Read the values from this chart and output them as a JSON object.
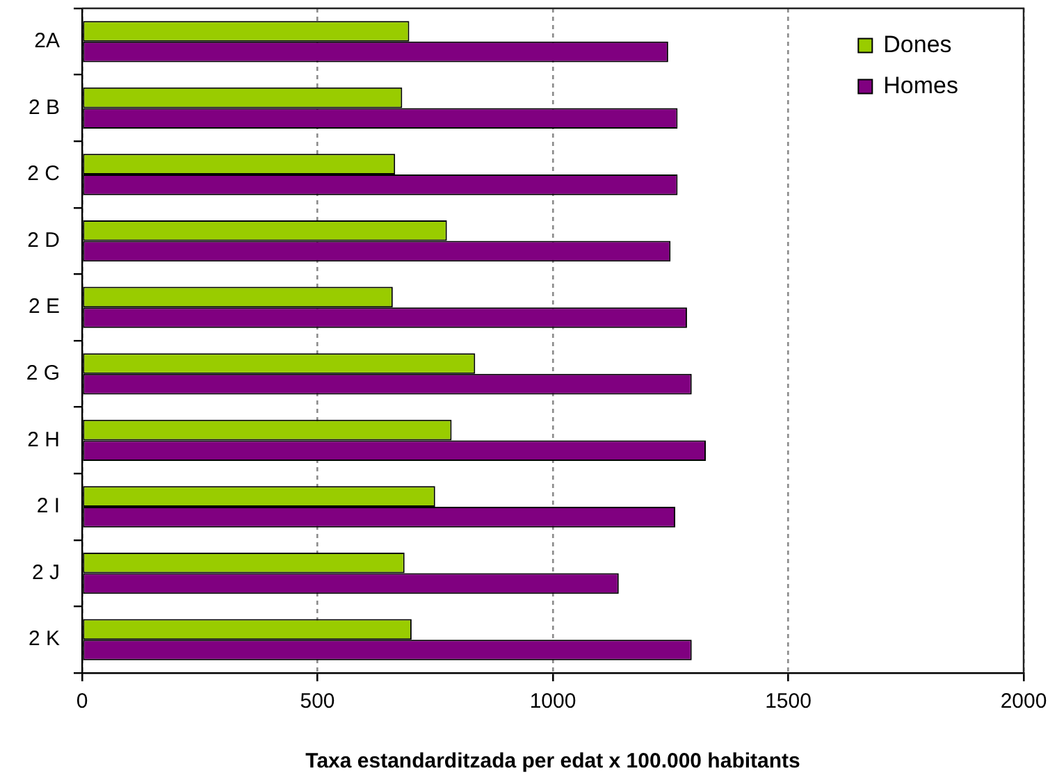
{
  "chart_data": {
    "type": "bar",
    "orientation": "horizontal",
    "categories": [
      "2A",
      "2 B",
      "2 C",
      "2 D",
      "2 E",
      "2 G",
      "2 H",
      "2 I",
      "2 J",
      "2 K"
    ],
    "series": [
      {
        "name": "Dones",
        "color": "#99cc00",
        "values": [
          695,
          680,
          665,
          775,
          660,
          835,
          785,
          750,
          685,
          700
        ]
      },
      {
        "name": "Homes",
        "color": "#800080",
        "values": [
          1245,
          1265,
          1265,
          1250,
          1285,
          1295,
          1325,
          1260,
          1140,
          1295
        ]
      }
    ],
    "xlabel": "Taxa estandarditzada per edat x 100.000 habitants",
    "xlim": [
      0,
      2000
    ],
    "xticks": [
      0,
      500,
      1000,
      1500,
      2000
    ],
    "grid": "x",
    "legend": "top right"
  }
}
